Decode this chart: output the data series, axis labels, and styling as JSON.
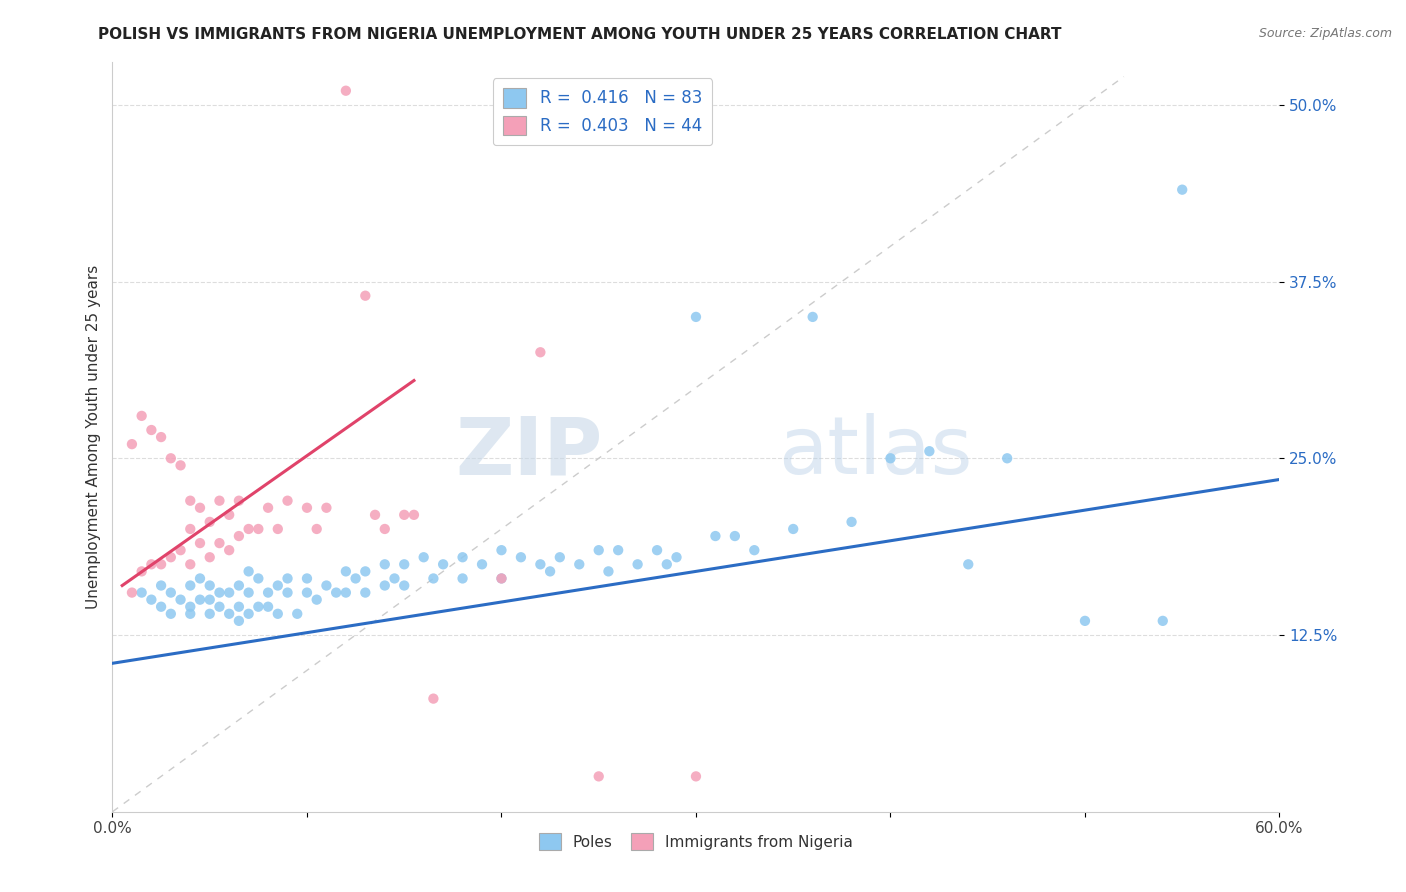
{
  "title": "POLISH VS IMMIGRANTS FROM NIGERIA UNEMPLOYMENT AMONG YOUTH UNDER 25 YEARS CORRELATION CHART",
  "source": "Source: ZipAtlas.com",
  "ylabel": "Unemployment Among Youth under 25 years",
  "xlim": [
    0.0,
    0.6
  ],
  "ylim": [
    0.0,
    0.53
  ],
  "yticks": [
    0.125,
    0.25,
    0.375,
    0.5
  ],
  "ytick_labels": [
    "12.5%",
    "25.0%",
    "37.5%",
    "50.0%"
  ],
  "xtick_positions": [
    0.0,
    0.1,
    0.2,
    0.3,
    0.4,
    0.5,
    0.6
  ],
  "xtick_labels": [
    "0.0%",
    "",
    "",
    "",
    "",
    "",
    "60.0%"
  ],
  "blue_color": "#8ec8f0",
  "pink_color": "#f4a0b8",
  "blue_line_color": "#2b6cc4",
  "pink_line_color": "#e0436a",
  "watermark_zip": "ZIP",
  "watermark_atlas": "atlas",
  "poles_scatter_x": [
    0.015,
    0.02,
    0.025,
    0.025,
    0.03,
    0.03,
    0.035,
    0.04,
    0.04,
    0.04,
    0.045,
    0.045,
    0.05,
    0.05,
    0.05,
    0.055,
    0.055,
    0.06,
    0.06,
    0.065,
    0.065,
    0.065,
    0.07,
    0.07,
    0.07,
    0.075,
    0.075,
    0.08,
    0.08,
    0.085,
    0.085,
    0.09,
    0.09,
    0.095,
    0.1,
    0.1,
    0.105,
    0.11,
    0.115,
    0.12,
    0.12,
    0.125,
    0.13,
    0.13,
    0.14,
    0.14,
    0.145,
    0.15,
    0.15,
    0.16,
    0.165,
    0.17,
    0.18,
    0.18,
    0.19,
    0.2,
    0.2,
    0.21,
    0.22,
    0.225,
    0.23,
    0.24,
    0.25,
    0.255,
    0.26,
    0.27,
    0.28,
    0.285,
    0.29,
    0.3,
    0.31,
    0.32,
    0.33,
    0.35,
    0.36,
    0.38,
    0.4,
    0.42,
    0.44,
    0.46,
    0.5,
    0.54,
    0.55
  ],
  "poles_scatter_y": [
    0.155,
    0.15,
    0.145,
    0.16,
    0.14,
    0.155,
    0.15,
    0.145,
    0.16,
    0.14,
    0.15,
    0.165,
    0.14,
    0.16,
    0.15,
    0.145,
    0.155,
    0.14,
    0.155,
    0.145,
    0.16,
    0.135,
    0.14,
    0.155,
    0.17,
    0.145,
    0.165,
    0.155,
    0.145,
    0.16,
    0.14,
    0.155,
    0.165,
    0.14,
    0.155,
    0.165,
    0.15,
    0.16,
    0.155,
    0.17,
    0.155,
    0.165,
    0.17,
    0.155,
    0.175,
    0.16,
    0.165,
    0.175,
    0.16,
    0.18,
    0.165,
    0.175,
    0.18,
    0.165,
    0.175,
    0.185,
    0.165,
    0.18,
    0.175,
    0.17,
    0.18,
    0.175,
    0.185,
    0.17,
    0.185,
    0.175,
    0.185,
    0.175,
    0.18,
    0.35,
    0.195,
    0.195,
    0.185,
    0.2,
    0.35,
    0.205,
    0.25,
    0.255,
    0.175,
    0.25,
    0.135,
    0.135,
    0.44
  ],
  "nigeria_scatter_x": [
    0.01,
    0.01,
    0.015,
    0.015,
    0.02,
    0.02,
    0.025,
    0.025,
    0.03,
    0.03,
    0.035,
    0.035,
    0.04,
    0.04,
    0.04,
    0.045,
    0.045,
    0.05,
    0.05,
    0.055,
    0.055,
    0.06,
    0.06,
    0.065,
    0.065,
    0.07,
    0.075,
    0.08,
    0.085,
    0.09,
    0.1,
    0.105,
    0.11,
    0.12,
    0.13,
    0.135,
    0.14,
    0.15,
    0.155,
    0.165,
    0.2,
    0.22,
    0.25,
    0.3
  ],
  "nigeria_scatter_y": [
    0.155,
    0.26,
    0.17,
    0.28,
    0.175,
    0.27,
    0.175,
    0.265,
    0.18,
    0.25,
    0.185,
    0.245,
    0.175,
    0.22,
    0.2,
    0.19,
    0.215,
    0.18,
    0.205,
    0.19,
    0.22,
    0.185,
    0.21,
    0.195,
    0.22,
    0.2,
    0.2,
    0.215,
    0.2,
    0.22,
    0.215,
    0.2,
    0.215,
    0.51,
    0.365,
    0.21,
    0.2,
    0.21,
    0.21,
    0.08,
    0.165,
    0.325,
    0.025,
    0.025
  ],
  "blue_line_x": [
    0.0,
    0.6
  ],
  "blue_line_y": [
    0.105,
    0.235
  ],
  "pink_line_x": [
    0.005,
    0.155
  ],
  "pink_line_y": [
    0.16,
    0.305
  ],
  "diagonal_line_x": [
    0.0,
    0.52
  ],
  "diagonal_line_y": [
    0.0,
    0.52
  ]
}
